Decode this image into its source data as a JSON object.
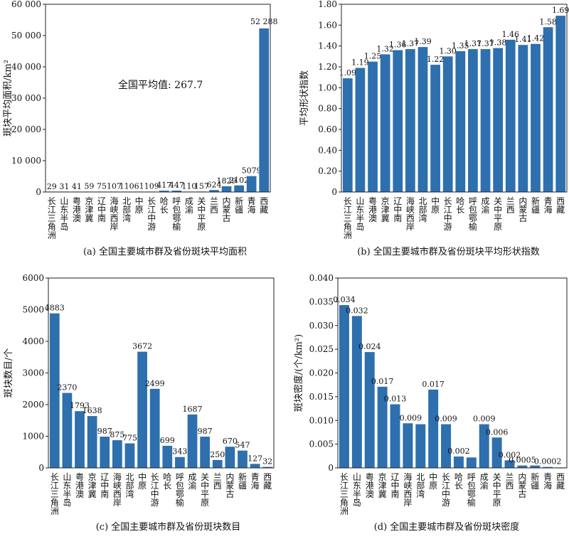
{
  "chart_data": [
    {
      "type": "bar",
      "caption": "(a) 全国主要城市群及省份斑块平均面积",
      "ylabel": "斑块平均面积/km²",
      "ylim": [
        0,
        60000
      ],
      "yticks": [
        0,
        10000,
        20000,
        30000,
        40000,
        50000,
        60000
      ],
      "ytick_labels": [
        "0",
        "10 000",
        "20 000",
        "30 000",
        "40 000",
        "50 000",
        "60 000"
      ],
      "annotation": "全国平均值: 267.7",
      "categories": [
        "长江三角洲",
        "山东半岛",
        "粤港澳",
        "京津冀",
        "辽中南",
        "海峡西岸",
        "北部湾",
        "中原",
        "长江中游",
        "哈长",
        "呼包鄂榆",
        "成渝",
        "关中平原",
        "兰西",
        "内蒙古",
        "新疆",
        "青海",
        "西藏"
      ],
      "values": [
        29,
        31,
        41,
        59,
        75,
        107,
        110,
        61,
        109,
        417,
        447,
        110,
        157,
        624,
        1829,
        2102,
        5079,
        52288
      ],
      "value_labels": [
        "29",
        "31",
        "41",
        "59",
        "75",
        "107",
        "110",
        "61",
        "109",
        "417",
        "447",
        "110",
        "157",
        "624",
        "1829",
        "2102",
        "5079",
        "52 288"
      ],
      "bar_color": "#2e6fae"
    },
    {
      "type": "bar",
      "caption": "(b) 全国主要城市群及省份斑块平均形状指数",
      "ylabel": "平均形状指数",
      "ylim": [
        0,
        1.8
      ],
      "yticks": [
        0,
        0.2,
        0.4,
        0.6,
        0.8,
        1.0,
        1.2,
        1.4,
        1.6,
        1.8
      ],
      "ytick_labels": [
        "0",
        "0.20",
        "0.40",
        "0.60",
        "0.80",
        "1.00",
        "1.20",
        "1.40",
        "1.60",
        "1.80"
      ],
      "categories": [
        "长江三角洲",
        "山东半岛",
        "粤港澳",
        "京津冀",
        "辽中南",
        "海峡西岸",
        "北部湾",
        "中原",
        "长江中游",
        "哈长",
        "呼包鄂榆",
        "成渝",
        "关中平原",
        "兰西",
        "内蒙古",
        "新疆",
        "青海",
        "西藏"
      ],
      "values": [
        1.09,
        1.19,
        1.25,
        1.32,
        1.36,
        1.37,
        1.39,
        1.22,
        1.3,
        1.35,
        1.37,
        1.37,
        1.38,
        1.46,
        1.41,
        1.42,
        1.58,
        1.69
      ],
      "value_labels": [
        "1.09",
        "1.19",
        "1.25",
        "1.32",
        "1.36",
        "1.37",
        "1.39",
        "1.22",
        "1.30",
        "1.35",
        "1.37",
        "1.37",
        "1.38",
        "1.46",
        "1.41",
        "1.42",
        "1.58",
        "1.69"
      ],
      "bar_color": "#2e6fae"
    },
    {
      "type": "bar",
      "caption": "(c) 全国主要城市群及省份斑块数目",
      "ylabel": "斑块数目/个",
      "ylim": [
        0,
        6000
      ],
      "yticks": [
        0,
        1000,
        2000,
        3000,
        4000,
        5000,
        6000
      ],
      "ytick_labels": [
        "0",
        "1000",
        "2000",
        "3000",
        "4000",
        "5000",
        "6000"
      ],
      "categories": [
        "长江三角洲",
        "山东半岛",
        "粤港澳",
        "京津冀",
        "辽中南",
        "海峡西岸",
        "北部湾",
        "中原",
        "长江中游",
        "哈长",
        "呼包鄂榆",
        "成渝",
        "关中平原",
        "兰西",
        "内蒙古",
        "新疆",
        "青海",
        "西藏"
      ],
      "values": [
        4883,
        2370,
        1793,
        1638,
        987,
        875,
        775,
        3672,
        2499,
        699,
        343,
        1687,
        987,
        250,
        670,
        547,
        127,
        32
      ],
      "value_labels": [
        "4883",
        "2370",
        "1793",
        "1638",
        "987",
        "875",
        "775",
        "3672",
        "2499",
        "699",
        "343",
        "1687",
        "987",
        "250",
        "670",
        "547",
        "127",
        "32"
      ],
      "bar_color": "#2e6fae"
    },
    {
      "type": "bar",
      "caption": "(d) 全国主要城市群及省份斑块密度",
      "ylabel": "斑块密度/(个/km²)",
      "ylim": [
        0,
        0.04
      ],
      "yticks": [
        0,
        0.005,
        0.01,
        0.015,
        0.02,
        0.025,
        0.03,
        0.035,
        0.04
      ],
      "ytick_labels": [
        "0",
        "0.005",
        "0.010",
        "0.015",
        "0.020",
        "0.025",
        "0.030",
        "0.035",
        "0.040"
      ],
      "categories": [
        "长江三角洲",
        "山东半岛",
        "粤港澳",
        "京津冀",
        "辽中南",
        "海峡西岸",
        "北部湾",
        "中原",
        "长江中游",
        "哈长",
        "呼包鄂榆",
        "成渝",
        "关中平原",
        "兰西",
        "内蒙古",
        "新疆",
        "青海",
        "西藏"
      ],
      "values": [
        0.0343,
        0.032,
        0.0244,
        0.0171,
        0.0134,
        0.0094,
        0.0092,
        0.0165,
        0.0092,
        0.0024,
        0.0022,
        0.0092,
        0.0064,
        0.0016,
        0.0005,
        0.0005,
        0.0002,
        0.0001
      ],
      "value_labels": [
        "0.034",
        "0.032",
        "0.024",
        "0.017",
        "0.013",
        "0.009",
        "",
        "0.017",
        "0.009",
        "0.002",
        "",
        "0.009",
        "0.006",
        "0.002",
        "0.0005",
        "",
        "0.0002",
        ""
      ],
      "bar_color": "#2e6fae"
    }
  ]
}
